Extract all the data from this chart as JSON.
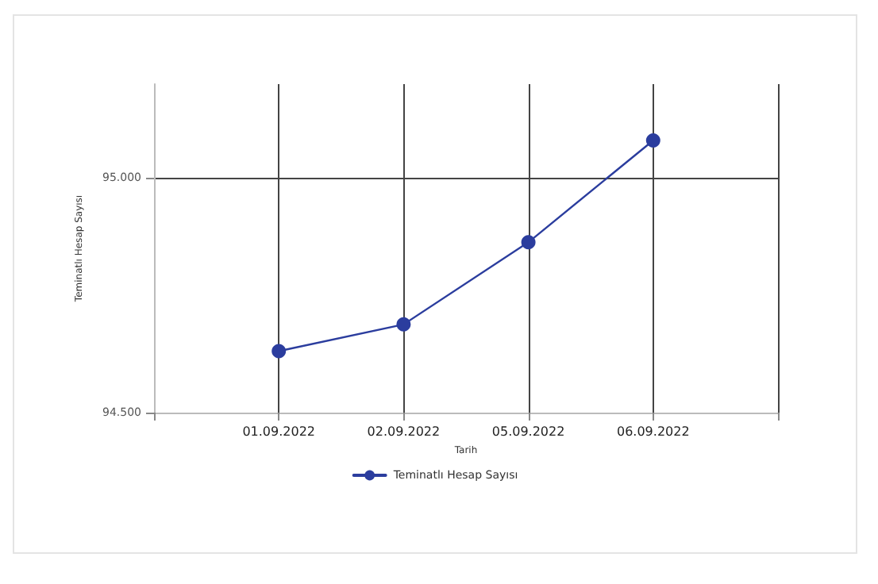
{
  "chart_data": {
    "type": "line",
    "xlabel": "Tarih",
    "ylabel": "Teminatlı Hesap Sayısı",
    "categories": [
      null,
      "01.09.2022",
      "02.09.2022",
      "05.09.2022",
      "06.09.2022",
      null
    ],
    "series": [
      {
        "name": "Teminatlı Hesap Sayısı",
        "color": "#2b3d9e",
        "values": [
          null,
          94631,
          94688,
          94863,
          95080,
          null
        ]
      }
    ],
    "ylim": [
      94500,
      95200
    ],
    "yticks": [
      {
        "value": 94500,
        "label": "94.500"
      },
      {
        "value": 95000,
        "label": "95.000"
      }
    ],
    "grid": true,
    "legend": "bottom",
    "marker": "circle",
    "line_style": "solid"
  }
}
